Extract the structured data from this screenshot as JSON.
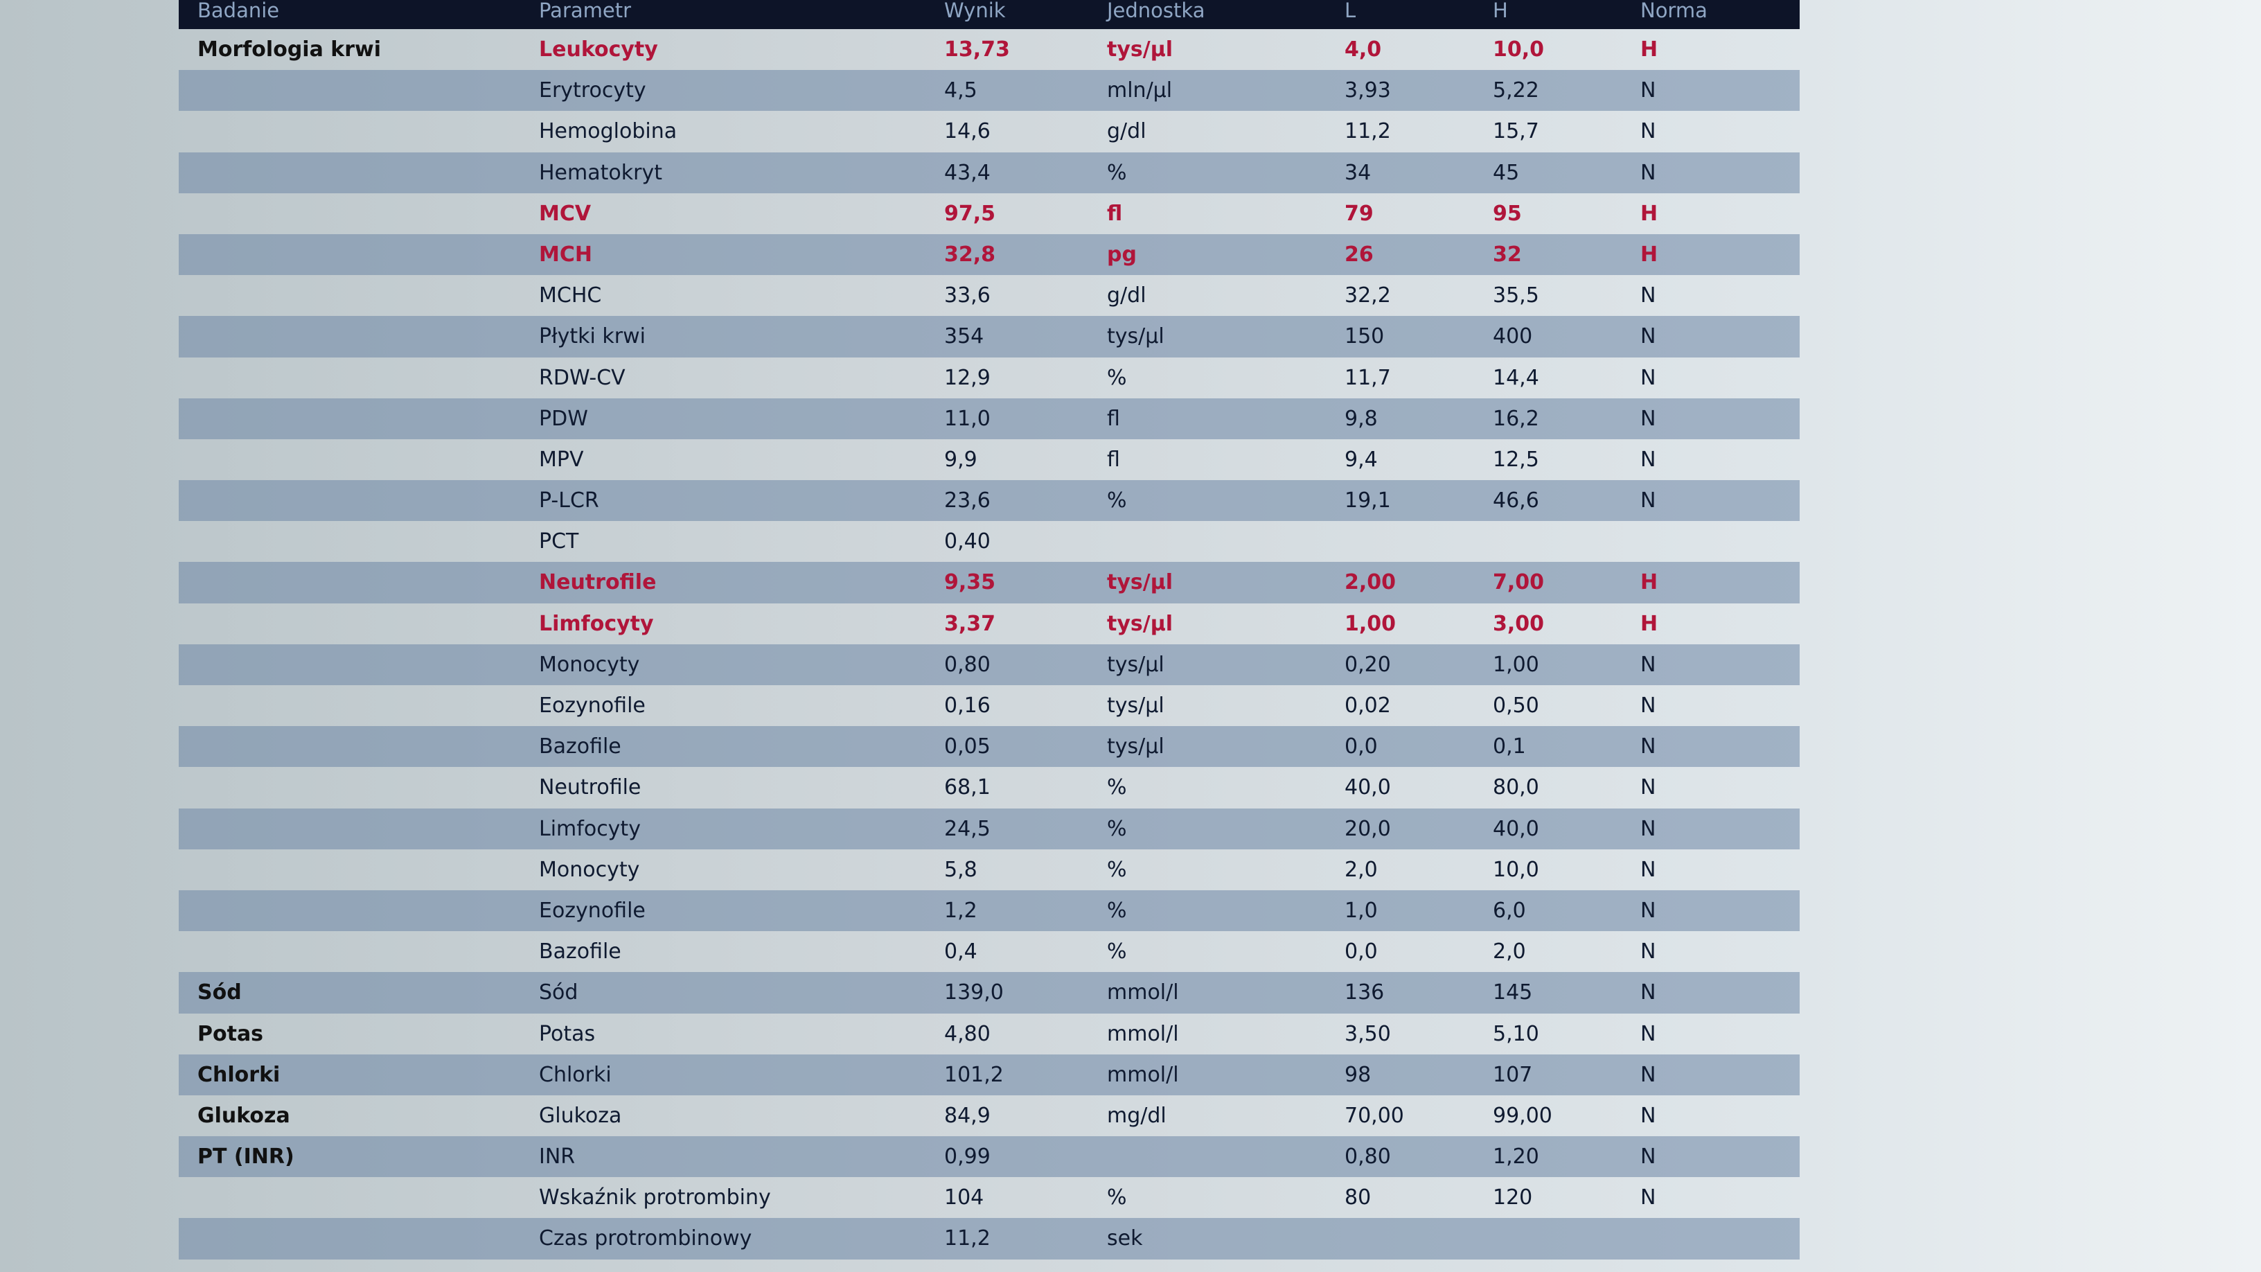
{
  "headers": [
    "Badanie",
    "Parametr",
    "Wynik",
    "Jednostka",
    "L",
    "H",
    "Norma"
  ],
  "colors": {
    "header_bg": "#0d1428",
    "flag_high": "#b0153a",
    "row_alt": "#8a9fba"
  },
  "rows": [
    {
      "badanie": "Morfologia krwi",
      "parametr": "Leukocyty",
      "wynik": "13,73",
      "jednostka": "tys/µl",
      "l": "4,0",
      "h": "10,0",
      "norma": "H",
      "flag": true
    },
    {
      "badanie": "",
      "parametr": "Erytrocyty",
      "wynik": "4,5",
      "jednostka": "mln/µl",
      "l": "3,93",
      "h": "5,22",
      "norma": "N"
    },
    {
      "badanie": "",
      "parametr": "Hemoglobina",
      "wynik": "14,6",
      "jednostka": "g/dl",
      "l": "11,2",
      "h": "15,7",
      "norma": "N"
    },
    {
      "badanie": "",
      "parametr": "Hematokryt",
      "wynik": "43,4",
      "jednostka": "%",
      "l": "34",
      "h": "45",
      "norma": "N"
    },
    {
      "badanie": "",
      "parametr": "MCV",
      "wynik": "97,5",
      "jednostka": "fl",
      "l": "79",
      "h": "95",
      "norma": "H",
      "flag": true
    },
    {
      "badanie": "",
      "parametr": "MCH",
      "wynik": "32,8",
      "jednostka": "pg",
      "l": "26",
      "h": "32",
      "norma": "H",
      "flag": true
    },
    {
      "badanie": "",
      "parametr": "MCHC",
      "wynik": "33,6",
      "jednostka": "g/dl",
      "l": "32,2",
      "h": "35,5",
      "norma": "N"
    },
    {
      "badanie": "",
      "parametr": "Płytki krwi",
      "wynik": "354",
      "jednostka": "tys/µl",
      "l": "150",
      "h": "400",
      "norma": "N"
    },
    {
      "badanie": "",
      "parametr": "RDW-CV",
      "wynik": "12,9",
      "jednostka": "%",
      "l": "11,7",
      "h": "14,4",
      "norma": "N"
    },
    {
      "badanie": "",
      "parametr": "PDW",
      "wynik": "11,0",
      "jednostka": "fl",
      "l": "9,8",
      "h": "16,2",
      "norma": "N"
    },
    {
      "badanie": "",
      "parametr": "MPV",
      "wynik": "9,9",
      "jednostka": "fl",
      "l": "9,4",
      "h": "12,5",
      "norma": "N"
    },
    {
      "badanie": "",
      "parametr": "P-LCR",
      "wynik": "23,6",
      "jednostka": "%",
      "l": "19,1",
      "h": "46,6",
      "norma": "N"
    },
    {
      "badanie": "",
      "parametr": "PCT",
      "wynik": "0,40",
      "jednostka": "",
      "l": "",
      "h": "",
      "norma": ""
    },
    {
      "badanie": "",
      "parametr": "Neutrofile",
      "wynik": "9,35",
      "jednostka": "tys/µl",
      "l": "2,00",
      "h": "7,00",
      "norma": "H",
      "flag": true
    },
    {
      "badanie": "",
      "parametr": "Limfocyty",
      "wynik": "3,37",
      "jednostka": "tys/µl",
      "l": "1,00",
      "h": "3,00",
      "norma": "H",
      "flag": true
    },
    {
      "badanie": "",
      "parametr": "Monocyty",
      "wynik": "0,80",
      "jednostka": "tys/µl",
      "l": "0,20",
      "h": "1,00",
      "norma": "N"
    },
    {
      "badanie": "",
      "parametr": "Eozynofile",
      "wynik": "0,16",
      "jednostka": "tys/µl",
      "l": "0,02",
      "h": "0,50",
      "norma": "N"
    },
    {
      "badanie": "",
      "parametr": "Bazofile",
      "wynik": "0,05",
      "jednostka": "tys/µl",
      "l": "0,0",
      "h": "0,1",
      "norma": "N"
    },
    {
      "badanie": "",
      "parametr": "Neutrofile",
      "wynik": "68,1",
      "jednostka": "%",
      "l": "40,0",
      "h": "80,0",
      "norma": "N"
    },
    {
      "badanie": "",
      "parametr": "Limfocyty",
      "wynik": "24,5",
      "jednostka": "%",
      "l": "20,0",
      "h": "40,0",
      "norma": "N"
    },
    {
      "badanie": "",
      "parametr": "Monocyty",
      "wynik": "5,8",
      "jednostka": "%",
      "l": "2,0",
      "h": "10,0",
      "norma": "N"
    },
    {
      "badanie": "",
      "parametr": "Eozynofile",
      "wynik": "1,2",
      "jednostka": "%",
      "l": "1,0",
      "h": "6,0",
      "norma": "N"
    },
    {
      "badanie": "",
      "parametr": "Bazofile",
      "wynik": "0,4",
      "jednostka": "%",
      "l": "0,0",
      "h": "2,0",
      "norma": "N"
    },
    {
      "badanie": "Sód",
      "parametr": "Sód",
      "wynik": "139,0",
      "jednostka": "mmol/l",
      "l": "136",
      "h": "145",
      "norma": "N"
    },
    {
      "badanie": "Potas",
      "parametr": "Potas",
      "wynik": "4,80",
      "jednostka": "mmol/l",
      "l": "3,50",
      "h": "5,10",
      "norma": "N"
    },
    {
      "badanie": "Chlorki",
      "parametr": "Chlorki",
      "wynik": "101,2",
      "jednostka": "mmol/l",
      "l": "98",
      "h": "107",
      "norma": "N"
    },
    {
      "badanie": "Glukoza",
      "parametr": "Glukoza",
      "wynik": "84,9",
      "jednostka": "mg/dl",
      "l": "70,00",
      "h": "99,00",
      "norma": "N"
    },
    {
      "badanie": "PT (INR)",
      "parametr": "INR",
      "wynik": "0,99",
      "jednostka": "",
      "l": "0,80",
      "h": "1,20",
      "norma": "N"
    },
    {
      "badanie": "",
      "parametr": "Wskaźnik protrombiny",
      "wynik": "104",
      "jednostka": "%",
      "l": "80",
      "h": "120",
      "norma": "N"
    },
    {
      "badanie": "",
      "parametr": "Czas protrombinowy",
      "wynik": "11,2",
      "jednostka": "sek",
      "l": "",
      "h": "",
      "norma": ""
    }
  ]
}
